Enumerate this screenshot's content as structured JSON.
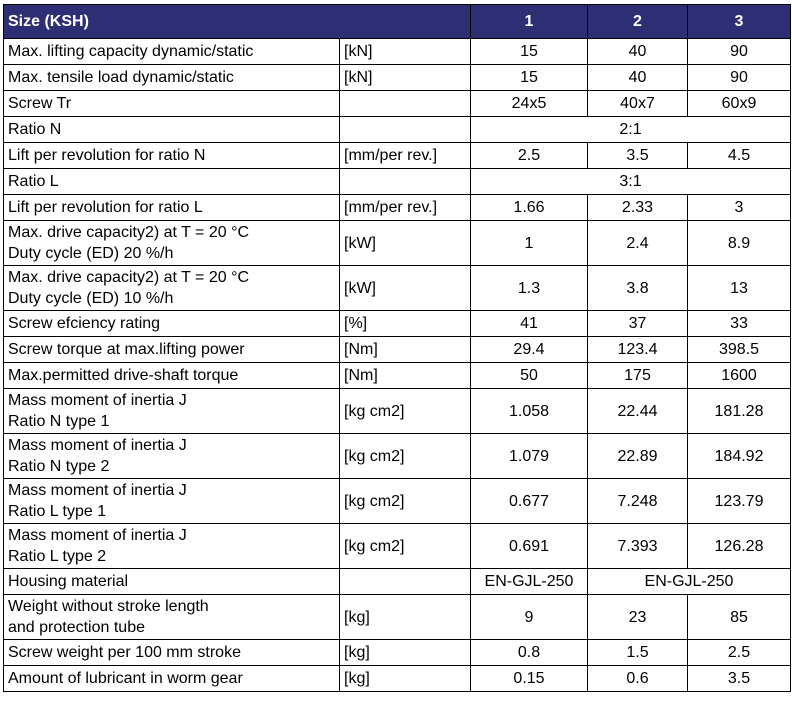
{
  "header": {
    "size": "Size (KSH)",
    "s1": "1",
    "s2": "2",
    "s3": "3"
  },
  "rows": [
    {
      "name": "Max. lifting capacity dynamic/static",
      "unit": "[kN]",
      "v": [
        "15",
        "40",
        "90"
      ]
    },
    {
      "name": "Max. tensile load dynamic/static",
      "unit": "[kN]",
      "v": [
        "15",
        "40",
        "90"
      ]
    },
    {
      "name": "Screw Tr",
      "unit": "",
      "v": [
        "24x5",
        "40x7",
        "60x9"
      ]
    },
    {
      "name": "Ratio N",
      "unit": "",
      "span": "2:1"
    },
    {
      "name": "Lift per revolution for ratio N",
      "unit": "[mm/per rev.]",
      "v": [
        "2.5",
        "3.5",
        "4.5"
      ]
    },
    {
      "name": "Ratio L",
      "unit": "",
      "span": "3:1"
    },
    {
      "name": "Lift per revolution for ratio L",
      "unit": "[mm/per rev.]",
      "v": [
        "1.66",
        "2.33",
        "3"
      ]
    },
    {
      "name": "Max. drive capacity2) at T = 20 °C\nDuty cycle (ED) 20 %/h",
      "unit": "[kW]",
      "v": [
        "1",
        "2.4",
        "8.9"
      ]
    },
    {
      "name": "Max. drive capacity2) at T = 20 °C\nDuty cycle (ED) 10 %/h",
      "unit": "[kW]",
      "v": [
        "1.3",
        "3.8",
        "13"
      ]
    },
    {
      "name": "Screw efciency rating",
      "unit": "[%]",
      "v": [
        "41",
        "37",
        "33"
      ]
    },
    {
      "name": "Screw torque at max.lifting power",
      "unit": "[Nm]",
      "v": [
        "29.4",
        "123.4",
        "398.5"
      ]
    },
    {
      "name": "Max.permitted drive-shaft torque",
      "unit": "[Nm]",
      "v": [
        "50",
        "175",
        "1600"
      ]
    },
    {
      "name": "Mass moment of inertia J\nRatio N type 1",
      "unit": "[kg cm2]",
      "v": [
        "1.058",
        "22.44",
        "181.28"
      ]
    },
    {
      "name": "Mass moment of inertia J\nRatio N type 2",
      "unit": "[kg cm2]",
      "v": [
        "1.079",
        "22.89",
        "184.92"
      ]
    },
    {
      "name": "Mass moment of inertia J\nRatio L type 1",
      "unit": "[kg cm2]",
      "v": [
        "0.677",
        "7.248",
        "123.79"
      ]
    },
    {
      "name": "Mass moment of inertia J\nRatio L type 2",
      "unit": "[kg cm2]",
      "v": [
        "0.691",
        "7.393",
        "126.28"
      ]
    },
    {
      "name": "Housing material",
      "unit": "",
      "v1": "EN-GJL-250",
      "v23": "EN-GJL-250"
    },
    {
      "name": "Weight without stroke length\nand protection tube",
      "unit": "[kg]",
      "v": [
        "9",
        "23",
        "85"
      ]
    },
    {
      "name": "Screw weight per 100 mm stroke",
      "unit": "[kg]",
      "v": [
        "0.8",
        "1.5",
        "2.5"
      ]
    },
    {
      "name": "Amount of lubricant in worm gear",
      "unit": "[kg]",
      "v": [
        "0.15",
        "0.6",
        "3.5"
      ]
    }
  ]
}
